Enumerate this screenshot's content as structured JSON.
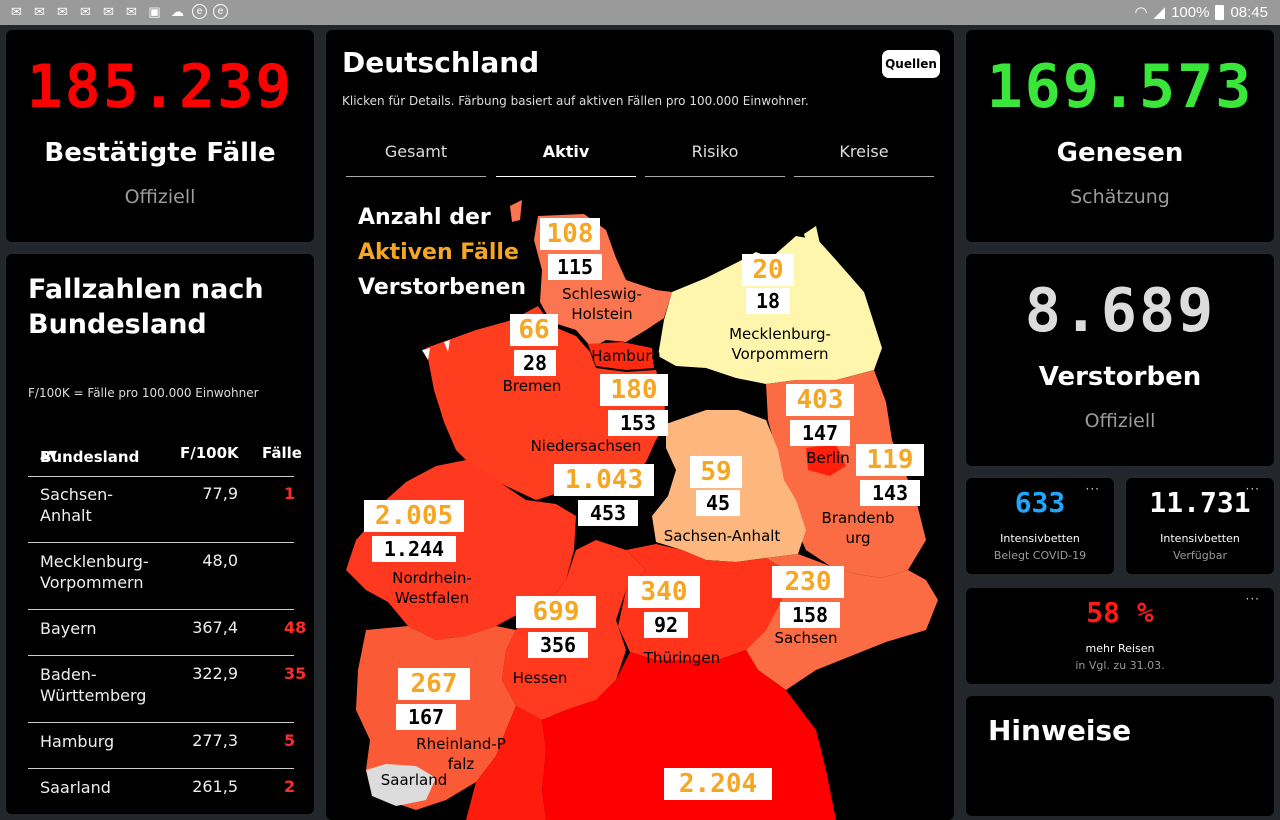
{
  "status_bar": {
    "battery": "100%",
    "time": "08:45"
  },
  "stats": {
    "confirmed": {
      "value": "185.239",
      "label": "Bestätigte Fälle",
      "sub": "Offiziell",
      "color": "#ff0000"
    },
    "recovered": {
      "value": "169.573",
      "label": "Genesen",
      "sub": "Schätzung",
      "color": "#39e639"
    },
    "deaths": {
      "value": "8.689",
      "label": "Verstorben",
      "sub": "Offiziell",
      "color": "#dcdcdc"
    }
  },
  "table": {
    "title": "Fallzahlen nach Bundesland",
    "note": "F/100K = Fälle pro 100.000 Einwohner",
    "headers": {
      "state": "Bundesland",
      "rate": "F/100K",
      "cases": "Fälle"
    },
    "rows": [
      {
        "name": "Sachsen-Anhalt",
        "rate": "77,9",
        "cases": "1"
      },
      {
        "name": "Mecklenburg-Vorpommern",
        "rate": "48,0",
        "cases": ""
      },
      {
        "name": "Bayern",
        "rate": "367,4",
        "cases": "48"
      },
      {
        "name": "Baden-Württemberg",
        "rate": "322,9",
        "cases": "35"
      },
      {
        "name": "Hamburg",
        "rate": "277,3",
        "cases": "5"
      },
      {
        "name": "Saarland",
        "rate": "261,5",
        "cases": "2"
      }
    ]
  },
  "map": {
    "title": "Deutschland",
    "description": "Klicken für Details. Färbung basiert auf aktiven Fällen pro 100.000 Einwohner.",
    "sources_button": "Quellen",
    "tabs": [
      "Gesamt",
      "Aktiv",
      "Risiko",
      "Kreise"
    ],
    "active_tab": "Aktiv",
    "legend": {
      "line1": "Anzahl der",
      "line2": "Aktiven Fälle",
      "line3": "Verstorbenen"
    },
    "regions": {
      "sh": {
        "name": "Schleswig-Holstein",
        "active": "108",
        "deaths": "115"
      },
      "mv": {
        "name": "Mecklenburg-Vorpommern",
        "active": "20",
        "deaths": "18"
      },
      "hb": {
        "name": "Bremen",
        "active": "66",
        "deaths": "28"
      },
      "hh": {
        "name": "Hamburg",
        "active": "180",
        "deaths": "153"
      },
      "ni": {
        "name": "Niedersachsen",
        "active": "1.043",
        "deaths": "453"
      },
      "be": {
        "name": "Berlin",
        "active": "403",
        "deaths": "147"
      },
      "bb": {
        "name": "Brandenburg",
        "active": "119",
        "deaths": "143"
      },
      "st": {
        "name": "Sachsen-Anhalt",
        "active": "59",
        "deaths": "45"
      },
      "nw": {
        "name": "Nordrhein-Westfalen",
        "active": "2.005",
        "deaths": "1.244"
      },
      "he": {
        "name": "Hessen",
        "active": "699",
        "deaths": "356"
      },
      "th": {
        "name": "Thüringen",
        "active": "340",
        "deaths": "92"
      },
      "sn": {
        "name": "Sachsen",
        "active": "230",
        "deaths": "158"
      },
      "rp": {
        "name": "Rheinland-Pfalz",
        "active": "267",
        "deaths": "167"
      },
      "sl": {
        "name": "Saarland"
      },
      "by": {
        "active": "2.204"
      }
    }
  },
  "small_cards": {
    "icu_covid": {
      "value": "633",
      "line1": "Intensivbetten",
      "line2": "Belegt COVID-19",
      "color": "#1ea7ff"
    },
    "icu_free": {
      "value": "11.731",
      "line1": "Intensivbetten",
      "line2": "Verfügbar",
      "color": "#ffffff"
    },
    "travel": {
      "value": "58 %",
      "line1": "mehr Reisen",
      "line2": "in Vgl. zu 31.03.",
      "color": "#ff1a1a"
    }
  },
  "notes_card": {
    "title": "Hinweise"
  }
}
